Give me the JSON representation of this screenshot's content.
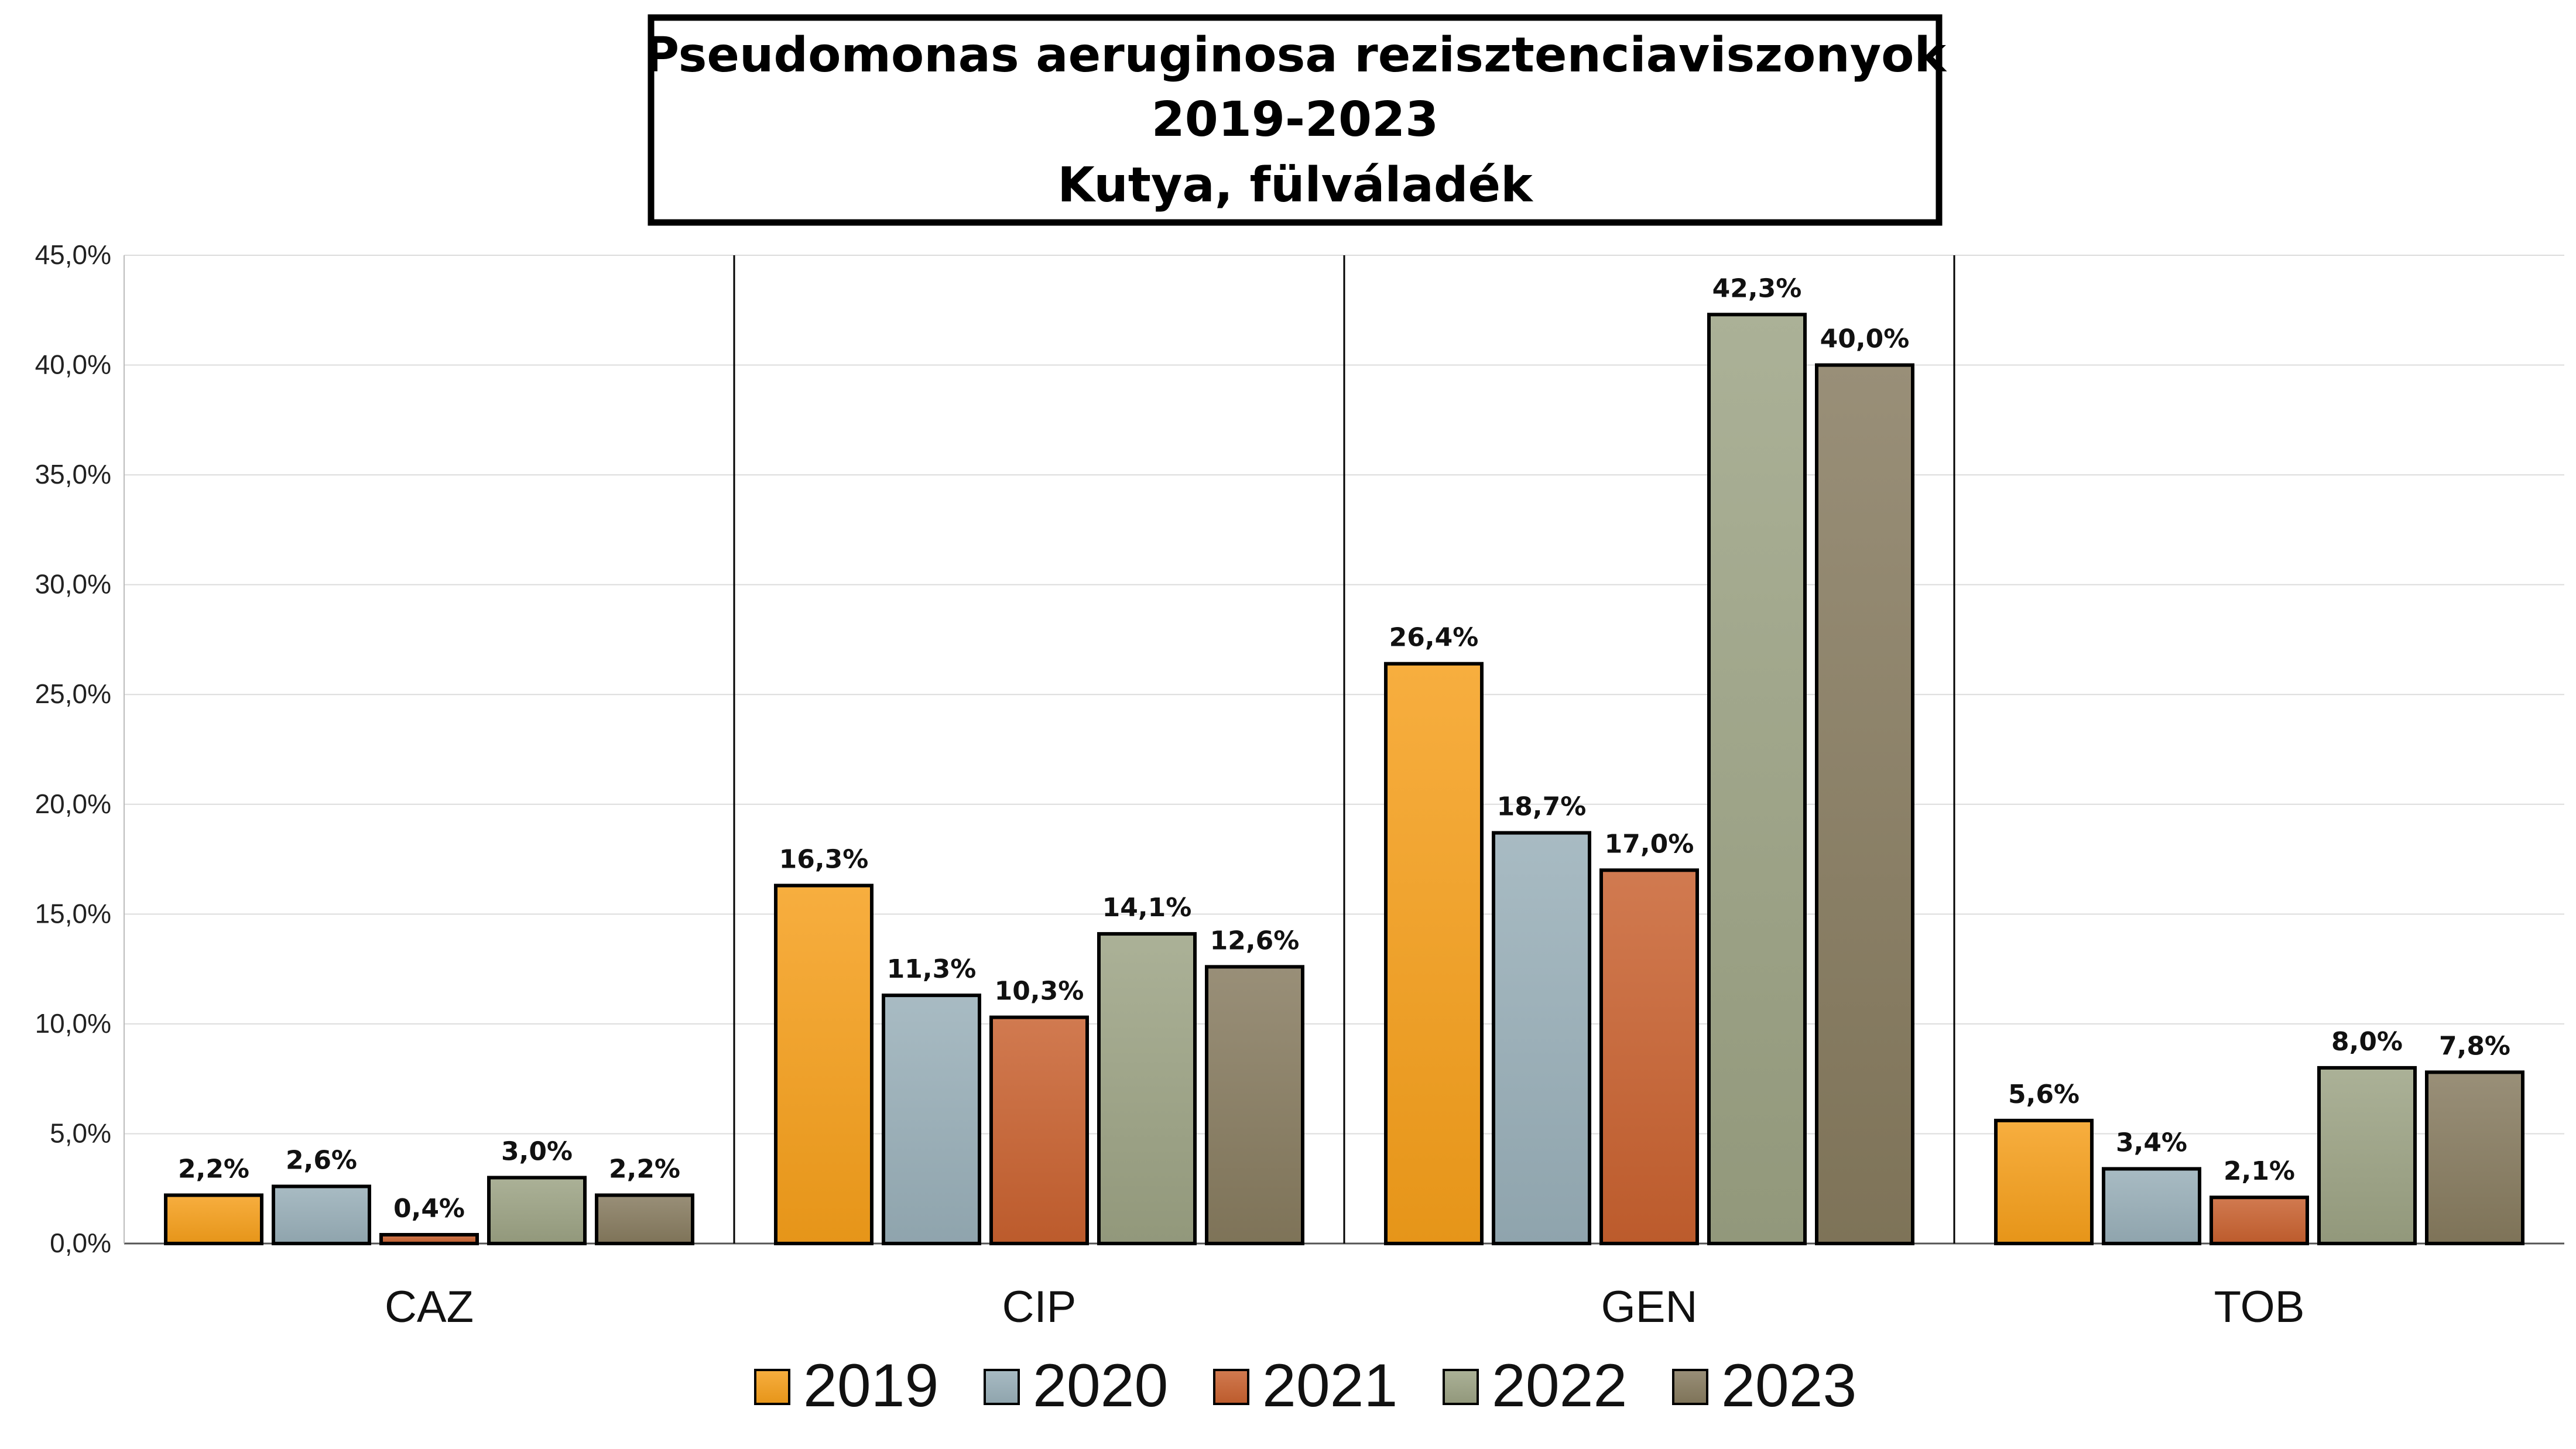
{
  "chart_data": {
    "type": "bar",
    "title_lines": [
      "Pseudomonas aeruginosa rezisztenciaviszonyok",
      "2019-2023",
      "Kutya, fülváladék"
    ],
    "categories": [
      "CAZ",
      "CIP",
      "GEN",
      "TOB"
    ],
    "series": [
      {
        "name": "2019",
        "color": "#F59E1B",
        "values": [
          2.2,
          16.3,
          26.4,
          5.6
        ],
        "labels": [
          "2,2%",
          "16,3%",
          "26,4%",
          "5,6%"
        ]
      },
      {
        "name": "2020",
        "color": "#98AEB8",
        "values": [
          2.6,
          11.3,
          18.7,
          3.4
        ],
        "labels": [
          "2,6%",
          "11,3%",
          "18,7%",
          "3,4%"
        ]
      },
      {
        "name": "2021",
        "color": "#C8612F",
        "values": [
          0.4,
          10.3,
          17.0,
          2.1
        ],
        "labels": [
          "0,4%",
          "10,3%",
          "17,0%",
          "2,1%"
        ]
      },
      {
        "name": "2022",
        "color": "#9BA283",
        "values": [
          3.0,
          14.1,
          42.3,
          8.0
        ],
        "labels": [
          "3,0%",
          "14,1%",
          "42,3%",
          "8,0%"
        ]
      },
      {
        "name": "2023",
        "color": "#867A5E",
        "values": [
          2.2,
          12.6,
          40.0,
          7.8
        ],
        "labels": [
          "2,2%",
          "12,6%",
          "40,0%",
          "7,8%"
        ]
      }
    ],
    "ylim": [
      0,
      45
    ],
    "yticks": [
      0,
      5,
      10,
      15,
      20,
      25,
      30,
      35,
      40,
      45
    ],
    "ytick_labels": [
      "0,0%",
      "5,0%",
      "10,0%",
      "15,0%",
      "20,0%",
      "25,0%",
      "30,0%",
      "35,0%",
      "40,0%",
      "45,0%"
    ],
    "grid": true,
    "legend_position": "bottom"
  }
}
